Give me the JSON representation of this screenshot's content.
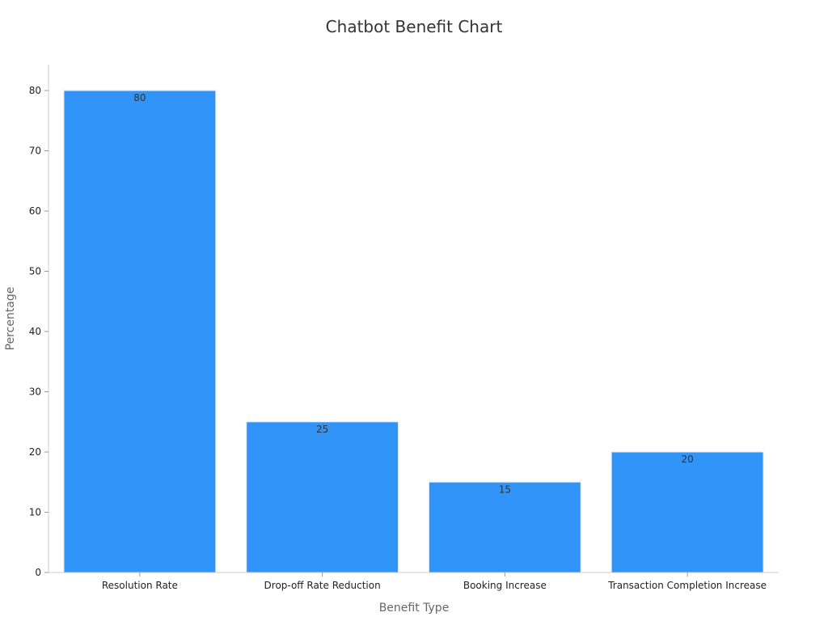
{
  "chart_data": {
    "type": "bar",
    "title": "Chatbot Benefit Chart",
    "xlabel": "Benefit Type",
    "ylabel": "Percentage",
    "categories": [
      "Resolution Rate",
      "Drop-off Rate Reduction",
      "Booking Increase",
      "Transaction Completion Increase"
    ],
    "values": [
      80,
      25,
      15,
      20
    ],
    "yticks": [
      "0",
      "10",
      "20",
      "30",
      "40",
      "50",
      "60",
      "70",
      "80"
    ],
    "data_labels": [
      "80",
      "25",
      "15",
      "20"
    ],
    "ylim": [
      0,
      84
    ],
    "grid": false,
    "legend": "none",
    "bar_color": "#3094f8",
    "bar_edge_color": "#d7e8fb"
  }
}
